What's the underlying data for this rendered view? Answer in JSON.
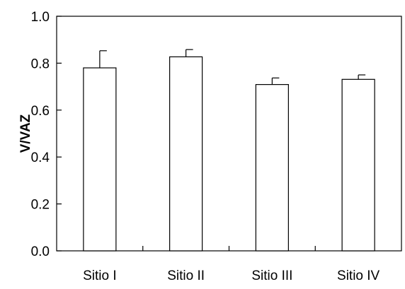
{
  "chart_data": {
    "type": "bar",
    "categories": [
      "Sitio I",
      "Sitio II",
      "Sitio III",
      "Sitio IV"
    ],
    "values": [
      0.78,
      0.827,
      0.709,
      0.731
    ],
    "error_upper": [
      0.073,
      0.031,
      0.028,
      0.019
    ],
    "ylabel": "V/VAZ",
    "xlabel": "",
    "title": "",
    "ylim": [
      0,
      1.0
    ],
    "yticks": [
      0.0,
      0.2,
      0.4,
      0.6,
      0.8,
      1.0
    ],
    "ytick_labels": [
      "0.0",
      "0.2",
      "0.4",
      "0.6",
      "0.8",
      "1.0"
    ],
    "bar_fill": "#ffffff",
    "bar_stroke": "#000000",
    "grid": false,
    "legend": "none"
  }
}
